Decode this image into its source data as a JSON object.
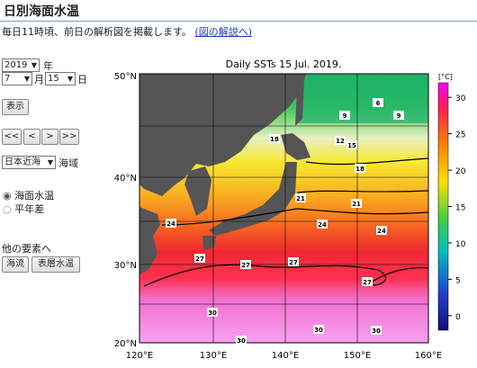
{
  "header": {
    "title": "日別海面水温"
  },
  "description": "毎日11時頃、前日の解析図を掲載します。",
  "description_link": "(図の解説へ)",
  "controls": {
    "year": "2019",
    "year_unit": "年",
    "month": "7",
    "month_unit": "月",
    "day": "15",
    "day_unit": "日",
    "display_button": "表示",
    "nav_buttons": [
      "<<",
      "<",
      ">",
      ">>"
    ],
    "region": "日本近海",
    "region_unit": "海域",
    "radio_options": [
      "海面水温",
      "平年差"
    ],
    "other_elements_label": "他の要素へ",
    "other_buttons": [
      "海流",
      "表層水温"
    ]
  },
  "map": {
    "title": "Daily SSTs 15 Jul. 2019.",
    "lat_labels": [
      "50°N",
      "40°N",
      "30°N",
      "20°N"
    ],
    "lon_labels": [
      "120°E",
      "130°E",
      "140°E",
      "150°E",
      "160°E"
    ],
    "colorbar_unit": "[°C]",
    "colorbar_lim": [
      -2,
      32
    ],
    "colorbar_ticks": [
      0,
      5,
      10,
      15,
      20,
      25,
      30
    ],
    "contour_labels": [
      9,
      6,
      9,
      18,
      12,
      15,
      18,
      21,
      21,
      24,
      24,
      24,
      27,
      27,
      27,
      27,
      30,
      30,
      30,
      30
    ]
  }
}
